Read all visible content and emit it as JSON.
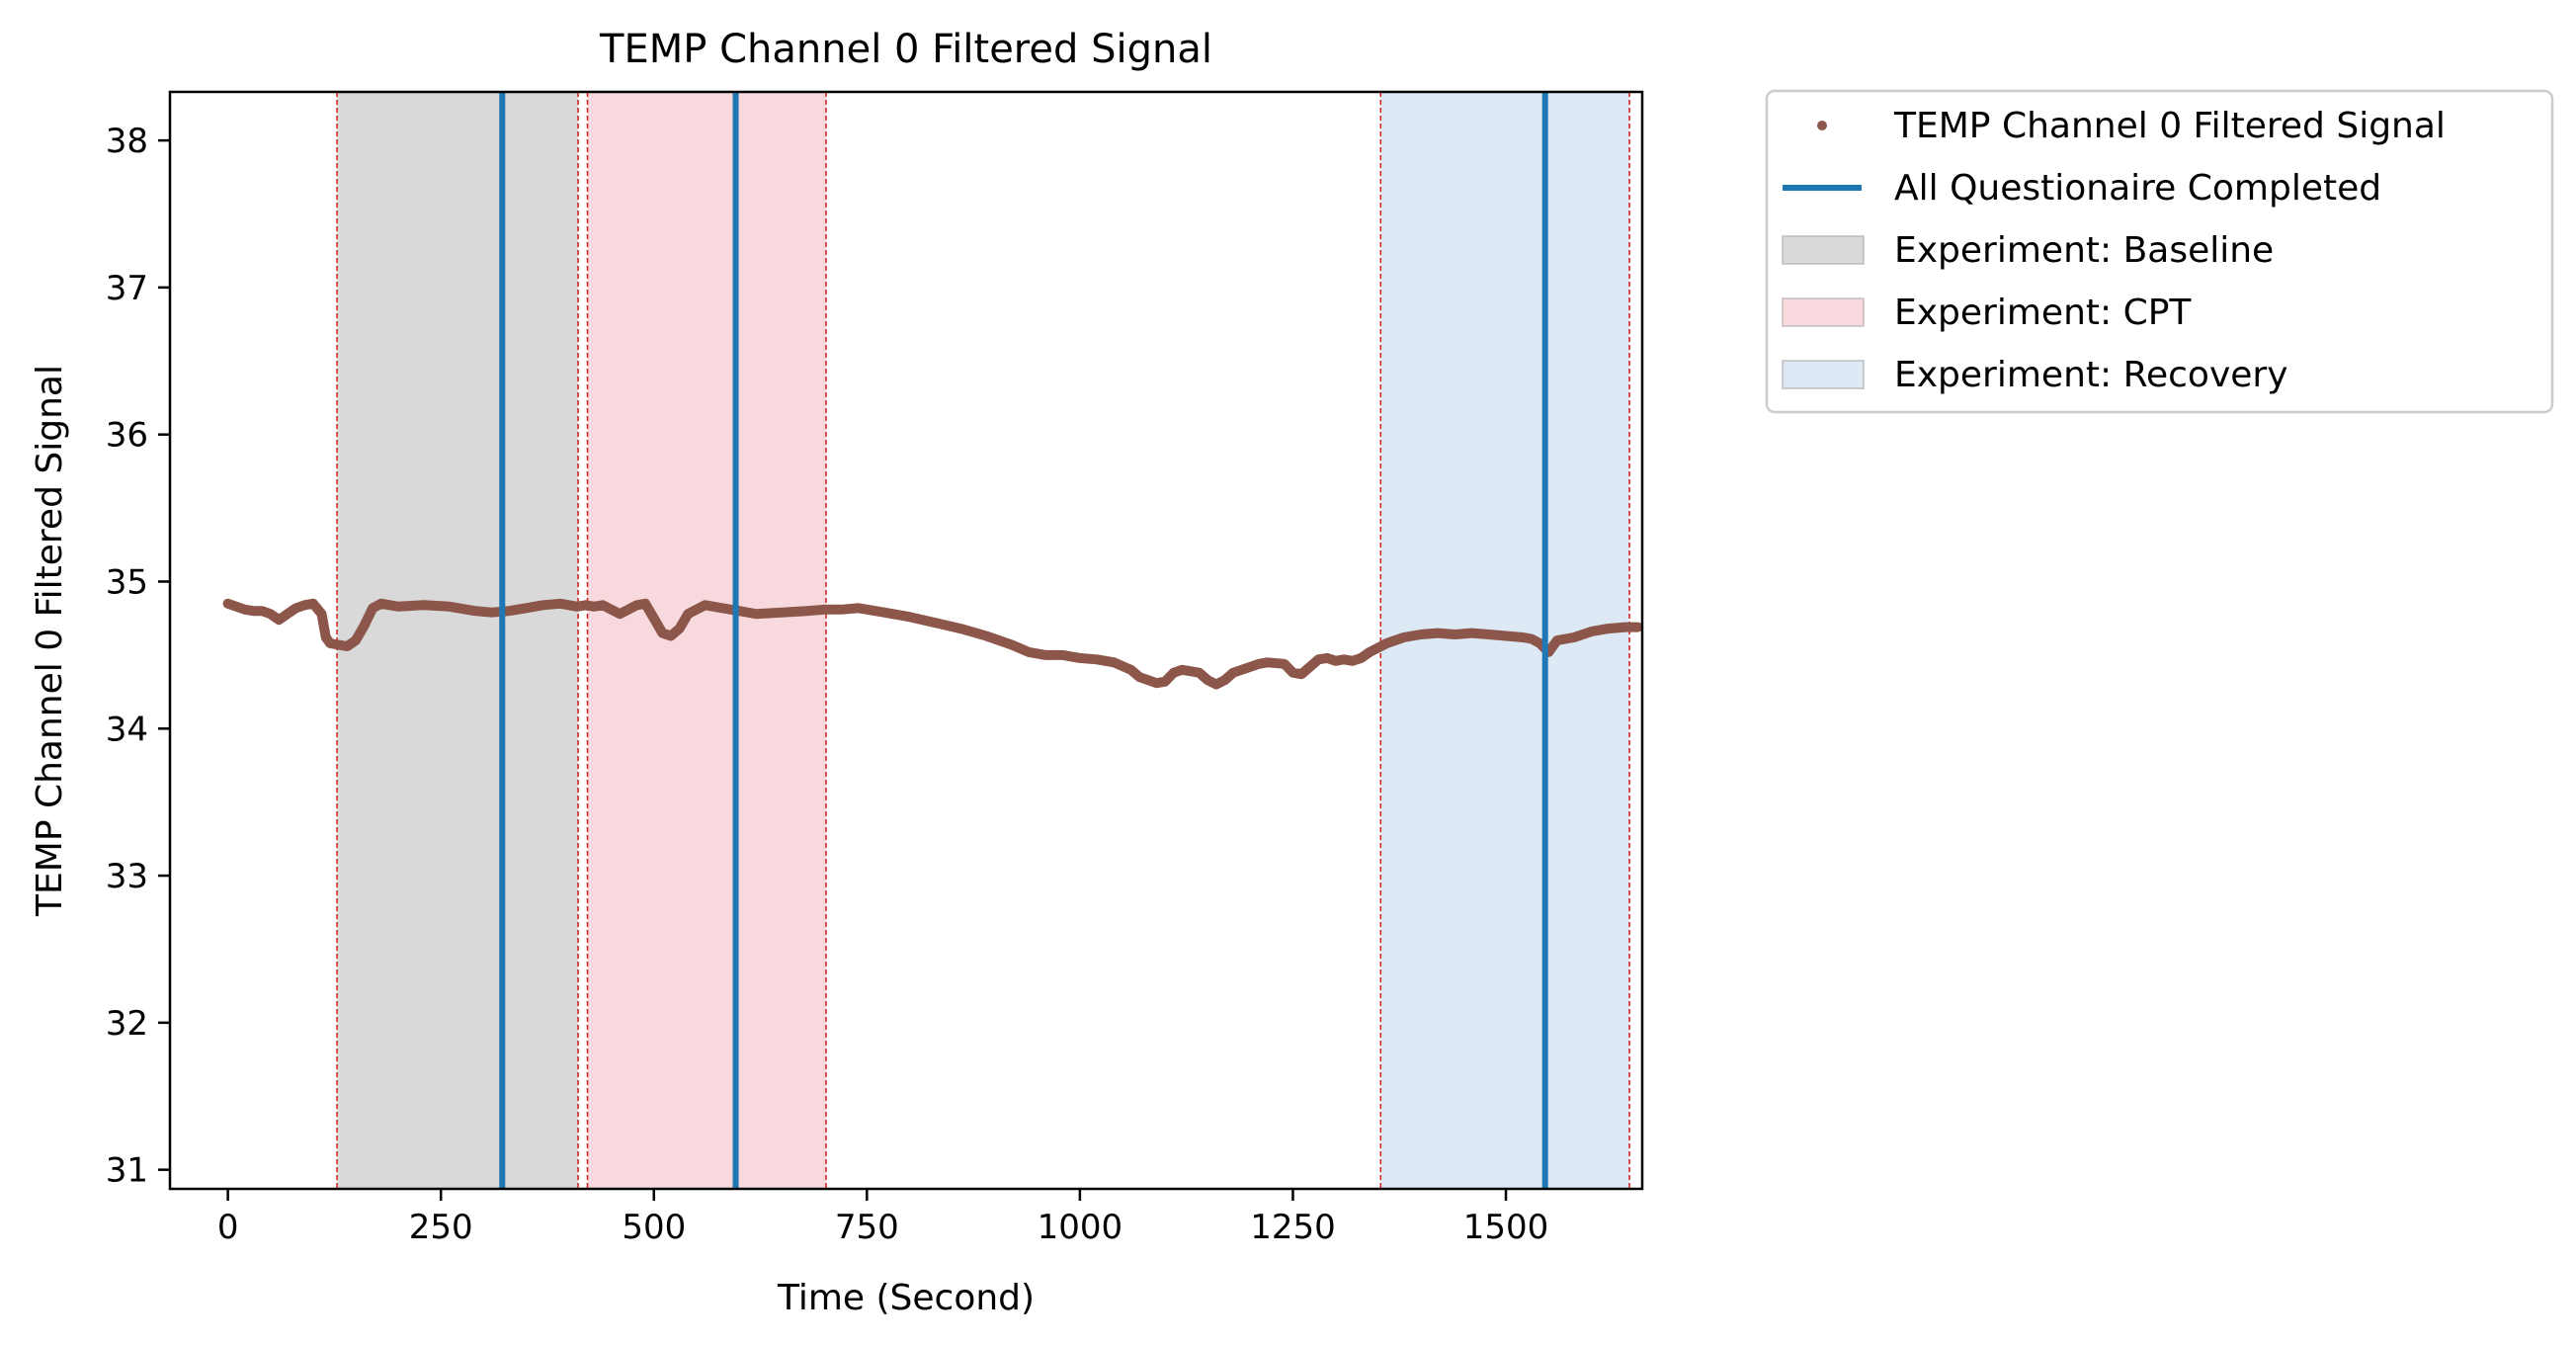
{
  "chart_data": {
    "type": "line",
    "title": "TEMP Channel 0 Filtered Signal",
    "xlabel": "Time (Second)",
    "ylabel": "TEMP Channel 0 Filtered Signal",
    "xlim": [
      -68,
      1660
    ],
    "ylim": [
      30.87,
      38.33
    ],
    "x_ticks": [
      0,
      250,
      500,
      750,
      1000,
      1250,
      1500
    ],
    "x_tick_labels": [
      "0",
      "250",
      "500",
      "750",
      "1000",
      "1250",
      "1500"
    ],
    "y_ticks": [
      31,
      32,
      33,
      34,
      35,
      36,
      37,
      38
    ],
    "y_tick_labels": [
      "31",
      "32",
      "33",
      "34",
      "35",
      "36",
      "37",
      "38"
    ],
    "grid": false,
    "legend_position": "outside-top-right",
    "legend": [
      {
        "label": "TEMP Channel 0 Filtered Signal",
        "kind": "marker",
        "color": "#8c564b"
      },
      {
        "label": "All Questionaire Completed",
        "kind": "line",
        "color": "#1f77b4"
      },
      {
        "label": "Experiment: Baseline",
        "kind": "patch",
        "color": "#d9d9d9"
      },
      {
        "label": "Experiment: CPT",
        "kind": "patch",
        "color": "#f8dade"
      },
      {
        "label": "Experiment: Recovery",
        "kind": "patch",
        "color": "#dde9f4"
      }
    ],
    "phases": [
      {
        "name": "Experiment: Baseline",
        "start": 128,
        "end": 411,
        "color": "#d9d9d9"
      },
      {
        "name": "Experiment: CPT",
        "start": 422,
        "end": 702,
        "color": "#f8dade"
      },
      {
        "name": "Experiment: Recovery",
        "start": 1353,
        "end": 1645,
        "color": "#dde9f4"
      }
    ],
    "phase_boundaries": [
      128,
      411,
      422,
      702,
      1353,
      1645
    ],
    "boundary_color": "#d62728",
    "questionnaire_markers": [
      322,
      596,
      1546
    ],
    "questionnaire_color": "#1f77b4",
    "series": [
      {
        "name": "TEMP Channel 0 Filtered Signal",
        "color": "#8c564b",
        "x": [
          0,
          10,
          20,
          30,
          40,
          50,
          60,
          70,
          80,
          90,
          100,
          110,
          115,
          120,
          130,
          140,
          150,
          160,
          170,
          180,
          200,
          230,
          260,
          290,
          310,
          330,
          350,
          370,
          390,
          410,
          420,
          430,
          440,
          460,
          480,
          490,
          500,
          510,
          520,
          530,
          540,
          560,
          580,
          600,
          620,
          650,
          680,
          700,
          720,
          740,
          760,
          780,
          800,
          830,
          860,
          890,
          920,
          940,
          960,
          980,
          1000,
          1020,
          1040,
          1060,
          1070,
          1080,
          1090,
          1100,
          1110,
          1120,
          1140,
          1150,
          1160,
          1170,
          1180,
          1200,
          1210,
          1220,
          1240,
          1250,
          1260,
          1270,
          1280,
          1290,
          1300,
          1310,
          1320,
          1330,
          1340,
          1360,
          1380,
          1400,
          1420,
          1440,
          1460,
          1480,
          1500,
          1520,
          1530,
          1540,
          1550,
          1560,
          1580,
          1600,
          1620,
          1640,
          1655
        ],
        "y": [
          34.85,
          34.83,
          34.81,
          34.8,
          34.8,
          34.78,
          34.74,
          34.78,
          34.82,
          34.84,
          34.85,
          34.78,
          34.62,
          34.58,
          34.57,
          34.56,
          34.6,
          34.7,
          34.82,
          34.85,
          34.83,
          34.84,
          34.83,
          34.8,
          34.79,
          34.8,
          34.82,
          34.84,
          34.85,
          34.83,
          34.84,
          34.83,
          34.84,
          34.78,
          34.84,
          34.85,
          34.75,
          34.65,
          34.63,
          34.68,
          34.78,
          34.84,
          34.82,
          34.8,
          34.78,
          34.79,
          34.8,
          34.81,
          34.81,
          34.82,
          34.8,
          34.78,
          34.76,
          34.72,
          34.68,
          34.63,
          34.57,
          34.52,
          34.5,
          34.5,
          34.48,
          34.47,
          34.45,
          34.4,
          34.35,
          34.33,
          34.31,
          34.32,
          34.38,
          34.4,
          34.38,
          34.33,
          34.3,
          34.33,
          34.38,
          34.42,
          34.44,
          34.45,
          34.44,
          34.38,
          34.37,
          34.42,
          34.47,
          34.48,
          34.46,
          34.47,
          34.46,
          34.48,
          34.52,
          34.58,
          34.62,
          34.64,
          34.65,
          34.64,
          34.65,
          34.64,
          34.63,
          34.62,
          34.61,
          34.58,
          34.52,
          34.6,
          34.62,
          34.66,
          34.68,
          34.69,
          34.69
        ]
      }
    ]
  }
}
